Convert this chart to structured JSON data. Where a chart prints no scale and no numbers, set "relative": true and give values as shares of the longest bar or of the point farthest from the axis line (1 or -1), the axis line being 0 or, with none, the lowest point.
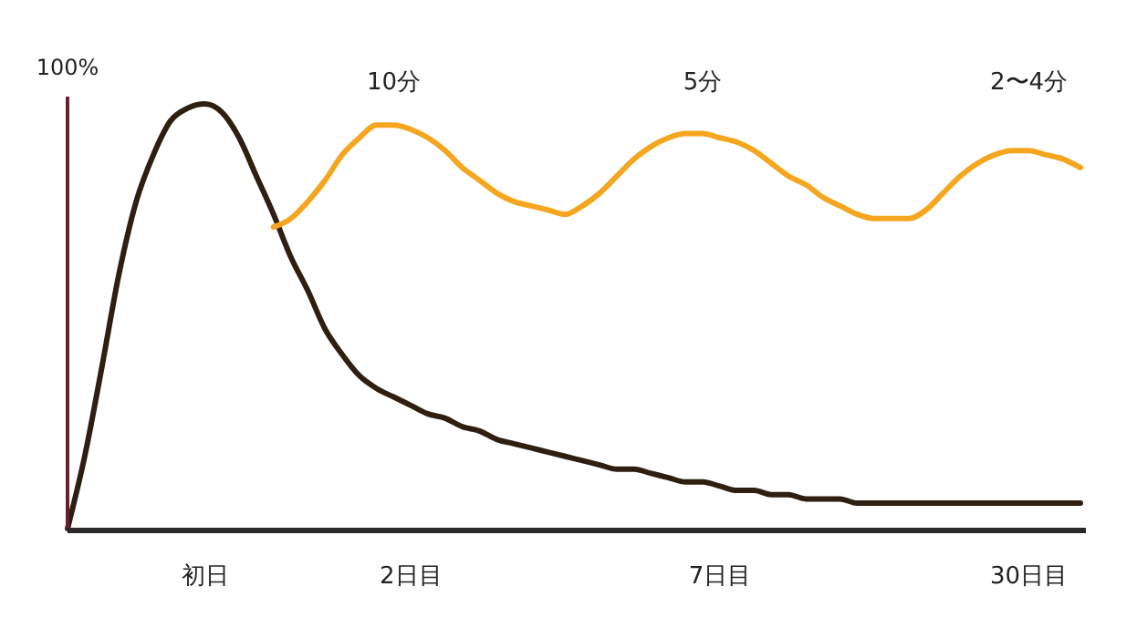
{
  "chart_data": {
    "type": "line",
    "relative": true,
    "ylabel": "100%",
    "annotations": [
      "10分",
      "5分",
      "2〜4分"
    ],
    "categories": [
      null,
      null,
      null,
      null,
      null,
      null,
      null,
      null,
      "初日",
      null,
      null,
      null,
      null,
      null,
      null,
      null,
      null,
      null,
      null,
      null,
      "2日目",
      null,
      null,
      null,
      null,
      null,
      null,
      null,
      null,
      null,
      null,
      null,
      null,
      null,
      null,
      null,
      null,
      null,
      "7日目",
      null,
      null,
      null,
      null,
      null,
      null,
      null,
      null,
      null,
      null,
      null,
      null,
      null,
      null,
      null,
      null,
      null,
      "30日目",
      null,
      null,
      null
    ],
    "series": [
      {
        "color": "#2e1f10",
        "values": [
          0,
          0.17,
          0.38,
          0.6,
          0.77,
          0.88,
          0.96,
          0.99,
          1,
          0.98,
          0.92,
          0.83,
          0.74,
          0.64,
          0.56,
          0.47,
          0.41,
          0.36,
          0.33,
          0.31,
          0.29,
          0.27,
          0.26,
          0.24,
          0.23,
          0.21,
          0.2,
          0.19,
          0.18,
          0.17,
          0.16,
          0.15,
          0.14,
          0.14,
          0.13,
          0.12,
          0.11,
          0.11,
          0.1,
          0.09,
          0.09,
          0.08,
          0.08,
          0.07,
          0.07,
          0.07,
          0.06,
          0.06,
          0.06,
          0.06,
          0.06,
          0.06,
          0.06,
          0.06,
          0.06,
          0.06,
          0.06,
          0.06,
          0.06,
          0.06
        ]
      },
      {
        "color": "#f5a61e",
        "values": [
          null,
          null,
          null,
          null,
          null,
          null,
          null,
          null,
          null,
          null,
          null,
          null,
          0.71,
          0.73,
          0.77,
          0.82,
          0.88,
          0.92,
          0.95,
          0.95,
          0.94,
          0.92,
          0.89,
          0.85,
          0.82,
          0.79,
          0.77,
          0.76,
          0.75,
          0.74,
          0.76,
          0.79,
          0.83,
          0.87,
          0.9,
          0.92,
          0.93,
          0.93,
          0.92,
          0.91,
          0.89,
          0.86,
          0.83,
          0.81,
          0.78,
          0.76,
          0.74,
          0.73,
          0.73,
          0.73,
          0.75,
          0.79,
          0.83,
          0.86,
          0.88,
          0.89,
          0.89,
          0.88,
          0.87,
          0.85
        ]
      }
    ]
  }
}
